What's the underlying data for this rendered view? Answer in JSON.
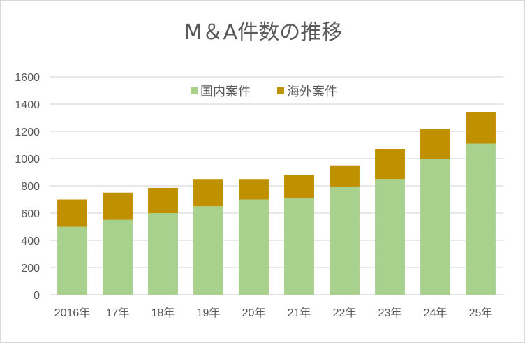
{
  "chart_data": {
    "type": "bar",
    "stacked": true,
    "title": "M＆A件数の推移",
    "categories": [
      "2016年",
      "17年",
      "18年",
      "19年",
      "20年",
      "21年",
      "22年",
      "23年",
      "24年",
      "25年"
    ],
    "series": [
      {
        "name": "国内案件",
        "color": "#a9d18e",
        "values": [
          500,
          550,
          600,
          650,
          700,
          710,
          795,
          850,
          995,
          1110
        ]
      },
      {
        "name": "海外案件",
        "color": "#bf9000",
        "values": [
          200,
          200,
          185,
          200,
          150,
          170,
          155,
          220,
          225,
          230
        ]
      }
    ],
    "ylim": [
      0,
      1600
    ],
    "yticks": [
      0,
      200,
      400,
      600,
      800,
      1000,
      1200,
      1400,
      1600
    ],
    "grid": true,
    "legend": "top-center"
  }
}
